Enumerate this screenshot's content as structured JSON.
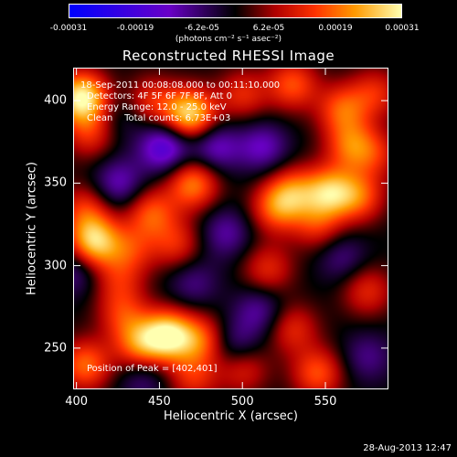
{
  "colorbar": {
    "tick_labels": [
      "-0.00031",
      "-0.00019",
      "-6.2e-05",
      "6.2e-05",
      "0.00019",
      "0.00031"
    ],
    "unit_label": "(photons cm⁻² s⁻¹ asec⁻²)",
    "colors": [
      "#0000ff",
      "#6a00c8",
      "#000000",
      "#b00000",
      "#ff3300",
      "#ff9a00",
      "#ffffb0"
    ]
  },
  "chart_data": {
    "type": "heatmap",
    "title": "Reconstructed RHESSI Image",
    "xlabel": "Heliocentric X (arcsec)",
    "ylabel": "Heliocentric Y (arcsec)",
    "xlim": [
      398,
      588
    ],
    "ylim": [
      225,
      420
    ],
    "xticks": [
      400,
      450,
      500,
      550
    ],
    "yticks": [
      250,
      300,
      350,
      400
    ],
    "value_range": [
      -0.00031,
      0.00031
    ],
    "peak": [
      402,
      401
    ],
    "grid": false,
    "blobs": [
      {
        "x": 403,
        "y": 402,
        "value": 0.00031
      },
      {
        "x": 408,
        "y": 380,
        "value": 0.00012
      },
      {
        "x": 426,
        "y": 390,
        "value": -5e-05
      },
      {
        "x": 445,
        "y": 400,
        "value": 0.00012
      },
      {
        "x": 468,
        "y": 392,
        "value": 0.00028
      },
      {
        "x": 470,
        "y": 350,
        "value": 0.0002
      },
      {
        "x": 500,
        "y": 404,
        "value": 0.00012
      },
      {
        "x": 512,
        "y": 372,
        "value": -0.00012
      },
      {
        "x": 530,
        "y": 410,
        "value": 0.00016
      },
      {
        "x": 560,
        "y": 395,
        "value": 0.00016
      },
      {
        "x": 580,
        "y": 405,
        "value": 0.00012
      },
      {
        "x": 565,
        "y": 373,
        "value": 0.00016
      },
      {
        "x": 453,
        "y": 372,
        "value": -0.00018
      },
      {
        "x": 483,
        "y": 372,
        "value": -0.00013
      },
      {
        "x": 425,
        "y": 350,
        "value": -0.00012
      },
      {
        "x": 445,
        "y": 332,
        "value": 0.00016
      },
      {
        "x": 432,
        "y": 310,
        "value": 0.00012
      },
      {
        "x": 410,
        "y": 312,
        "value": 0.00016
      },
      {
        "x": 405,
        "y": 335,
        "value": 0.00012
      },
      {
        "x": 460,
        "y": 313,
        "value": 0.00012
      },
      {
        "x": 490,
        "y": 320,
        "value": -0.0001
      },
      {
        "x": 520,
        "y": 335,
        "value": 0.00016
      },
      {
        "x": 530,
        "y": 345,
        "value": 0.00016
      },
      {
        "x": 552,
        "y": 345,
        "value": 0.00022
      },
      {
        "x": 570,
        "y": 342,
        "value": 0.00016
      },
      {
        "x": 545,
        "y": 325,
        "value": 0.00012
      },
      {
        "x": 515,
        "y": 298,
        "value": 0.00012
      },
      {
        "x": 470,
        "y": 290,
        "value": -8e-05
      },
      {
        "x": 510,
        "y": 273,
        "value": -0.0001
      },
      {
        "x": 560,
        "y": 305,
        "value": -8e-05
      },
      {
        "x": 575,
        "y": 285,
        "value": 0.00012
      },
      {
        "x": 400,
        "y": 298,
        "value": -0.0001
      },
      {
        "x": 425,
        "y": 290,
        "value": 0.0001
      },
      {
        "x": 405,
        "y": 240,
        "value": 0.00018
      },
      {
        "x": 438,
        "y": 252,
        "value": 0.00018
      },
      {
        "x": 455,
        "y": 258,
        "value": 0.00028
      },
      {
        "x": 475,
        "y": 255,
        "value": 0.00016
      },
      {
        "x": 428,
        "y": 270,
        "value": 0.00012
      },
      {
        "x": 495,
        "y": 252,
        "value": -0.0001
      },
      {
        "x": 530,
        "y": 262,
        "value": 0.00012
      },
      {
        "x": 545,
        "y": 235,
        "value": 0.00016
      },
      {
        "x": 500,
        "y": 238,
        "value": 0.00012
      },
      {
        "x": 470,
        "y": 232,
        "value": 0.00012
      },
      {
        "x": 575,
        "y": 245,
        "value": -8e-05
      },
      {
        "x": 410,
        "y": 318,
        "value": 0.00012
      },
      {
        "x": 440,
        "y": 232,
        "value": -8e-05
      },
      {
        "x": 580,
        "y": 368,
        "value": 0.0001
      }
    ]
  },
  "annotations": [
    "18-Sep-2011 00:08:08.000 to 00:11:10.000",
    "Detectors: 4F 5F 6F 7F 8F, Att 0",
    "Energy Range: 12.0 - 25.0 keV",
    "Clean    Total counts: 6.73E+03"
  ],
  "peak_label": "Position of Peak = [402,401]",
  "timestamp": "28-Aug-2013 12:47"
}
